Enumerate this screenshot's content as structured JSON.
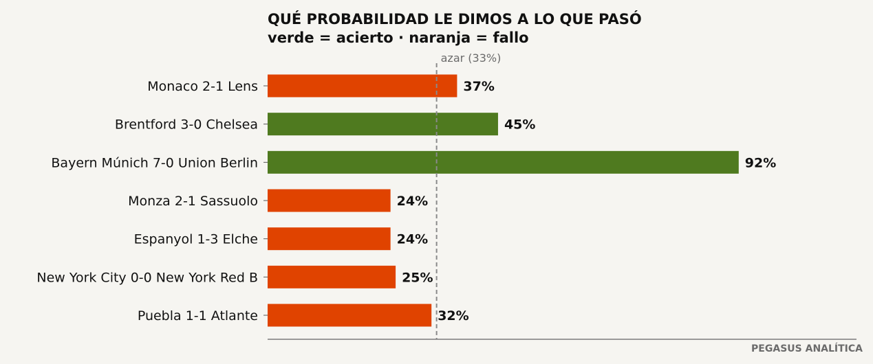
{
  "chart_data": {
    "type": "bar",
    "orientation": "horizontal",
    "title": "QUÉ PROBABILIDAD LE DIMOS A LO QUE PASÓ",
    "subtitle": "verde = acierto · naranja = fallo",
    "categories": [
      "Monaco 2-1 Lens",
      "Brentford 3-0 Chelsea",
      "Bayern Múnich 7-0 Union Berlin",
      "Monza 2-1 Sassuolo",
      "Espanyol 1-3 Elche",
      "New York City  0-0 New York Red B",
      "Puebla 1-1 Atlante"
    ],
    "values": [
      37,
      45,
      92,
      24,
      24,
      25,
      32
    ],
    "value_labels": [
      "37%",
      "45%",
      "92%",
      "24%",
      "24%",
      "25%",
      "32%"
    ],
    "outcomes": [
      "fallo",
      "acierto",
      "acierto",
      "fallo",
      "fallo",
      "fallo",
      "fallo"
    ],
    "colors": {
      "acierto": "#4f7a1f",
      "fallo": "#e04300"
    },
    "reference_line": {
      "value": 33,
      "label": "azar (33%)",
      "style": "dashed",
      "color": "#8a8a8a"
    },
    "xlim": [
      0,
      115
    ],
    "grid": false,
    "legend": "none"
  },
  "footer": {
    "credit": "PEGASUS ANALÍTICA"
  },
  "colors": {
    "background": "#f6f5f1",
    "axis": "#7a7a7a",
    "text": "#111111"
  }
}
